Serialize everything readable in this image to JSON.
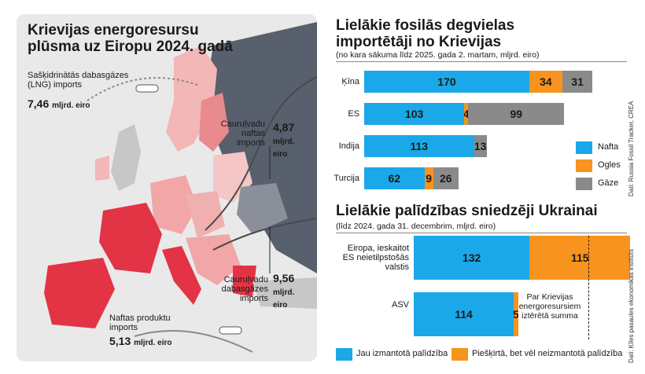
{
  "map": {
    "title": "Krievijas energoresursu plūsma uz Eiropu 2024. gadā",
    "lng_label": "Sašķidrinātās dabasgāzes (LNG) imports",
    "lng_value": "7,46",
    "lng_unit": "mljrd. eiro",
    "oil_pipe_label": "Cauruļvadu naftas imports",
    "oil_pipe_value": "4,87",
    "oil_pipe_unit": "mljrd. eiro",
    "gas_pipe_label": "Cauruļvadu dabasgāzes imports",
    "gas_pipe_value": "9,56",
    "gas_pipe_unit": "mljrd. eiro",
    "products_label": "Naftas produktu imports",
    "products_value": "5,13",
    "products_unit": "mljrd. eiro"
  },
  "colors": {
    "nafta": "#1ba8e8",
    "ogles": "#f7931e",
    "gaze": "#8a8a8a",
    "used": "#1ba8e8",
    "pledged": "#f7931e"
  },
  "importers": {
    "title": "Lielākie fosilās degvielas importētāji no Krievijas",
    "subtitle": "(no kara sākuma līdz 2025. gada 2. martam, mljrd. eiro)",
    "legend": [
      "Nafta",
      "Ogles",
      "Gāze"
    ],
    "source": "Dati: Russia Fossil Tracker, CREA"
  },
  "aid": {
    "title": "Lielākie palīdzības sniedzēji Ukrainai",
    "subtitle": "(līdz 2024. gada 31. decembrim, mljrd. eiro)",
    "legend_used": "Jau izmantotā palīdzība",
    "legend_pledged": "Piešķirtā, bet vēl neizmantotā palīdzība",
    "annotation": "Par Krievijas energoresursiem iztērētā summa",
    "source": "Dati: Ķīles pasaules ekonomikas institūts"
  },
  "chart_data": [
    {
      "type": "bar",
      "orientation": "horizontal",
      "stacked": true,
      "title": "Lielākie fosilās degvielas importētāji no Krievijas",
      "subtitle": "(no kara sākuma līdz 2025. gada 2. martam, mljrd. eiro)",
      "categories": [
        "Ķīna",
        "ES",
        "Indija",
        "Turcija"
      ],
      "series": [
        {
          "name": "Nafta",
          "values": [
            170,
            103,
            113,
            62
          ]
        },
        {
          "name": "Ogles",
          "values": [
            34,
            4,
            0,
            9
          ]
        },
        {
          "name": "Gāze",
          "values": [
            31,
            99,
            13,
            26
          ]
        }
      ],
      "data_labels": [
        [
          "170",
          "34",
          "31"
        ],
        [
          "103",
          "4",
          "99"
        ],
        [
          "113",
          "",
          "13"
        ],
        [
          "62",
          "9",
          "26"
        ]
      ],
      "legend": "right"
    },
    {
      "type": "bar",
      "orientation": "horizontal",
      "stacked": true,
      "title": "Lielākie palīdzības sniedzēji Ukrainai",
      "subtitle": "(līdz 2024. gada 31. decembrim, mljrd. eiro)",
      "categories": [
        "Eiropa, ieskaitot ES neietilpstošās valstis",
        "ASV"
      ],
      "series": [
        {
          "name": "Jau izmantotā palīdzība",
          "values": [
            132,
            114
          ]
        },
        {
          "name": "Piešķirtā, bet vēl neizmantotā palīdzība",
          "values": [
            115,
            5
          ]
        }
      ],
      "reference_line": {
        "label": "Par Krievijas energoresursiem iztērētā summa",
        "value": 206
      },
      "legend": "bottom"
    }
  ]
}
